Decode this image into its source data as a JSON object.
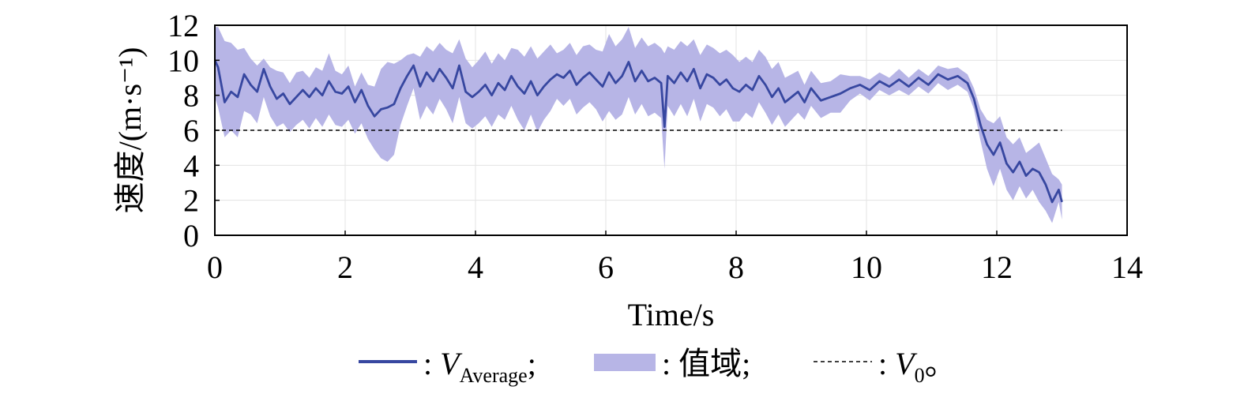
{
  "chart_data": {
    "type": "line",
    "xlabel": "Time/s",
    "ylabel": "速度/(m·s⁻¹)",
    "xlim": [
      0,
      14
    ],
    "ylim": [
      0,
      12
    ],
    "xticks": [
      "0",
      "2",
      "4",
      "6",
      "8",
      "10",
      "12",
      "14"
    ],
    "yticks": [
      "0",
      "2",
      "4",
      "6",
      "8",
      "10",
      "12"
    ],
    "grid": true,
    "legend_position": "bottom",
    "colors": {
      "average": "#3747a0",
      "range": "#b7b5e6",
      "reference": "#000000"
    },
    "series": [
      {
        "name": "V_Average",
        "x": [
          0,
          0.05,
          0.15,
          0.25,
          0.35,
          0.45,
          0.55,
          0.65,
          0.75,
          0.85,
          0.95,
          1.05,
          1.15,
          1.25,
          1.35,
          1.45,
          1.55,
          1.65,
          1.75,
          1.85,
          1.95,
          2.05,
          2.15,
          2.25,
          2.35,
          2.45,
          2.55,
          2.65,
          2.75,
          2.85,
          2.95,
          3.05,
          3.15,
          3.25,
          3.35,
          3.45,
          3.55,
          3.65,
          3.75,
          3.85,
          3.95,
          4.05,
          4.15,
          4.25,
          4.35,
          4.45,
          4.55,
          4.65,
          4.75,
          4.85,
          4.95,
          5.05,
          5.15,
          5.25,
          5.35,
          5.45,
          5.55,
          5.65,
          5.75,
          5.85,
          5.95,
          6.05,
          6.15,
          6.25,
          6.35,
          6.45,
          6.55,
          6.65,
          6.75,
          6.85,
          6.9,
          6.95,
          7.05,
          7.15,
          7.25,
          7.35,
          7.45,
          7.55,
          7.65,
          7.75,
          7.85,
          7.95,
          8.05,
          8.15,
          8.25,
          8.35,
          8.45,
          8.55,
          8.65,
          8.75,
          8.85,
          8.95,
          9.05,
          9.15,
          9.3,
          9.45,
          9.6,
          9.75,
          9.9,
          10.05,
          10.2,
          10.35,
          10.5,
          10.65,
          10.8,
          10.95,
          11.1,
          11.25,
          11.4,
          11.55,
          11.65,
          11.75,
          11.85,
          11.95,
          12.05,
          12.15,
          12.25,
          12.35,
          12.45,
          12.55,
          12.65,
          12.75,
          12.85,
          12.95,
          13.0
        ],
        "values": [
          10.0,
          9.6,
          7.6,
          8.2,
          7.9,
          9.2,
          8.6,
          8.2,
          9.5,
          8.5,
          7.8,
          8.1,
          7.5,
          7.9,
          8.3,
          7.9,
          8.4,
          8.0,
          8.8,
          8.2,
          8.1,
          8.5,
          7.6,
          8.3,
          7.4,
          6.8,
          7.2,
          7.3,
          7.5,
          8.4,
          9.1,
          9.7,
          8.5,
          9.3,
          8.8,
          9.5,
          9.0,
          8.4,
          9.7,
          8.2,
          7.9,
          8.2,
          8.6,
          8.0,
          8.7,
          8.3,
          9.1,
          8.5,
          8.1,
          8.8,
          8.0,
          8.5,
          8.9,
          9.2,
          9.0,
          9.4,
          8.6,
          9.0,
          9.3,
          8.9,
          8.5,
          9.3,
          8.7,
          9.1,
          9.9,
          8.8,
          9.4,
          8.8,
          9.0,
          8.7,
          6.2,
          9.1,
          8.7,
          9.3,
          8.8,
          9.5,
          8.4,
          9.2,
          9.0,
          8.6,
          8.9,
          8.4,
          8.2,
          8.6,
          8.3,
          9.1,
          8.6,
          7.9,
          8.4,
          7.6,
          7.9,
          8.2,
          7.6,
          8.4,
          7.7,
          7.9,
          8.1,
          8.4,
          8.6,
          8.3,
          8.8,
          8.5,
          8.9,
          8.5,
          9.0,
          8.6,
          9.2,
          8.9,
          9.1,
          8.7,
          7.8,
          6.3,
          5.2,
          4.6,
          5.3,
          4.1,
          3.6,
          4.2,
          3.4,
          3.8,
          3.6,
          2.9,
          1.9,
          2.6,
          1.9
        ],
        "upper": [
          11.9,
          11.9,
          11.1,
          11.0,
          10.6,
          10.7,
          10.1,
          9.7,
          10.1,
          9.6,
          9.4,
          9.3,
          8.7,
          9.3,
          9.4,
          9.0,
          9.6,
          9.4,
          10.4,
          9.4,
          9.2,
          9.7,
          8.5,
          9.3,
          8.6,
          8.5,
          9.5,
          9.9,
          9.8,
          10.0,
          10.3,
          10.4,
          10.2,
          10.8,
          10.5,
          11.0,
          10.6,
          10.4,
          11.2,
          10.1,
          9.6,
          10.0,
          10.5,
          9.8,
          10.4,
          10.0,
          10.7,
          10.6,
          10.2,
          10.8,
          10.1,
          10.5,
          10.9,
          10.4,
          10.6,
          11.0,
          10.3,
          10.8,
          10.9,
          10.6,
          10.5,
          11.5,
          10.8,
          11.2,
          11.9,
          10.7,
          11.3,
          10.8,
          11.0,
          10.7,
          10.4,
          10.8,
          10.6,
          11.1,
          10.8,
          11.2,
          10.3,
          10.9,
          10.7,
          10.4,
          10.6,
          10.3,
          9.9,
          10.2,
          9.9,
          10.6,
          10.2,
          9.5,
          9.9,
          9.0,
          9.2,
          9.4,
          8.6,
          9.4,
          8.7,
          8.8,
          9.2,
          9.1,
          9.1,
          8.9,
          9.3,
          9.0,
          9.5,
          9.0,
          9.5,
          9.1,
          9.7,
          9.5,
          9.6,
          9.2,
          8.4,
          7.2,
          6.6,
          6.4,
          6.8,
          5.6,
          5.2,
          5.6,
          4.7,
          5.0,
          5.3,
          4.4,
          3.5,
          3.2,
          2.9
        ],
        "lower": [
          7.9,
          7.3,
          5.6,
          6.0,
          5.6,
          7.1,
          6.9,
          6.4,
          7.9,
          6.8,
          6.2,
          6.4,
          5.9,
          6.3,
          6.6,
          6.1,
          6.7,
          6.2,
          6.9,
          6.3,
          6.2,
          6.6,
          5.8,
          6.4,
          5.5,
          4.9,
          4.4,
          4.2,
          4.6,
          6.3,
          7.4,
          8.4,
          6.6,
          7.4,
          6.9,
          7.8,
          7.2,
          6.4,
          7.9,
          6.4,
          6.1,
          6.4,
          6.8,
          6.2,
          6.9,
          6.6,
          7.4,
          6.6,
          6.0,
          6.9,
          5.9,
          6.6,
          7.1,
          7.8,
          7.4,
          7.8,
          6.9,
          7.3,
          7.6,
          7.2,
          6.5,
          7.1,
          6.6,
          6.9,
          7.9,
          6.9,
          7.5,
          6.8,
          7.0,
          6.7,
          3.8,
          7.4,
          6.8,
          7.5,
          6.8,
          7.8,
          6.5,
          7.5,
          7.3,
          6.8,
          7.2,
          6.5,
          6.5,
          7.0,
          6.7,
          7.6,
          7.0,
          6.3,
          6.9,
          6.2,
          6.6,
          7.0,
          6.6,
          7.4,
          6.7,
          7.0,
          7.0,
          7.7,
          8.1,
          7.7,
          8.3,
          8.0,
          8.3,
          8.0,
          8.5,
          8.1,
          8.7,
          8.3,
          8.6,
          8.2,
          7.2,
          5.4,
          3.8,
          2.8,
          3.8,
          2.6,
          2.0,
          2.8,
          2.1,
          2.6,
          1.9,
          1.4,
          0.7,
          1.9,
          0.9
        ]
      },
      {
        "name": "值域"
      },
      {
        "name": "V_0",
        "values": [
          6,
          6
        ]
      }
    ],
    "legend": [
      {
        "key": "average",
        "prefix": ": ",
        "main": "V",
        "sub": "Average",
        "suffix": ";"
      },
      {
        "key": "range",
        "prefix": ": ",
        "main": "值域",
        "sub": "",
        "suffix": ";"
      },
      {
        "key": "reference",
        "prefix": ": ",
        "main": "V",
        "sub": "0",
        "suffix": "。"
      }
    ]
  }
}
